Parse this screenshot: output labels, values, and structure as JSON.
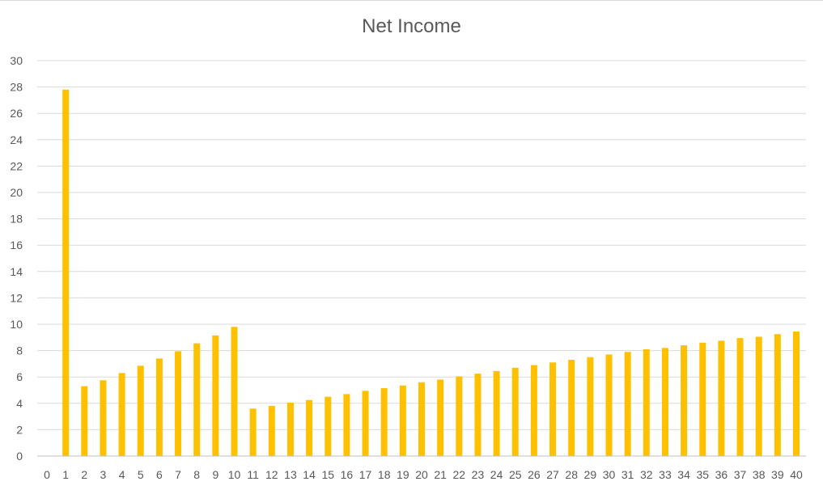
{
  "chart_data": {
    "type": "bar",
    "title": "Net Income",
    "xlabel": "",
    "ylabel": "",
    "categories": [
      0,
      1,
      2,
      3,
      4,
      5,
      6,
      7,
      8,
      9,
      10,
      11,
      12,
      13,
      14,
      15,
      16,
      17,
      18,
      19,
      20,
      21,
      22,
      23,
      24,
      25,
      26,
      27,
      28,
      29,
      30,
      31,
      32,
      33,
      34,
      35,
      36,
      37,
      38,
      39,
      40
    ],
    "series": [
      {
        "values": [
          null,
          27.8,
          5.3,
          5.75,
          6.3,
          6.85,
          7.4,
          7.95,
          8.55,
          9.15,
          9.8,
          3.6,
          3.8,
          4.05,
          4.25,
          4.5,
          4.7,
          4.95,
          5.15,
          5.35,
          5.6,
          5.8,
          6.05,
          6.25,
          6.45,
          6.7,
          6.9,
          7.1,
          7.3,
          7.5,
          7.7,
          7.9,
          8.1,
          8.2,
          8.4,
          8.6,
          8.75,
          8.95,
          9.05,
          9.25,
          9.45
        ]
      }
    ],
    "ylim": [
      0,
      30
    ],
    "yticks": [
      0,
      2,
      4,
      6,
      8,
      10,
      12,
      14,
      16,
      18,
      20,
      22,
      24,
      26,
      28,
      30
    ],
    "grid": true,
    "legend": "none",
    "colors": {
      "bar": "#ffc000",
      "grid": "#d9d9d9",
      "axis": "#bfbfbf",
      "text": "#595959"
    }
  }
}
